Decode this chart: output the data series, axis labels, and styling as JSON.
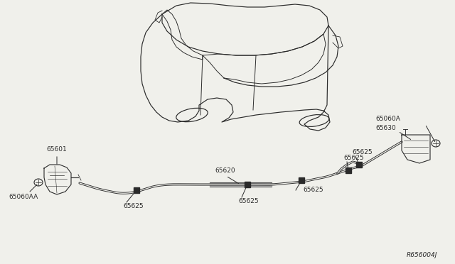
{
  "bg_color": "#f0f0eb",
  "line_color": "#2a2a2a",
  "diagram_ref": "R656004J",
  "label_fontsize": 6.5,
  "ref_fontsize": 6.5,
  "cable_color": "#2a2a2a",
  "part_color": "#2a2a2a"
}
